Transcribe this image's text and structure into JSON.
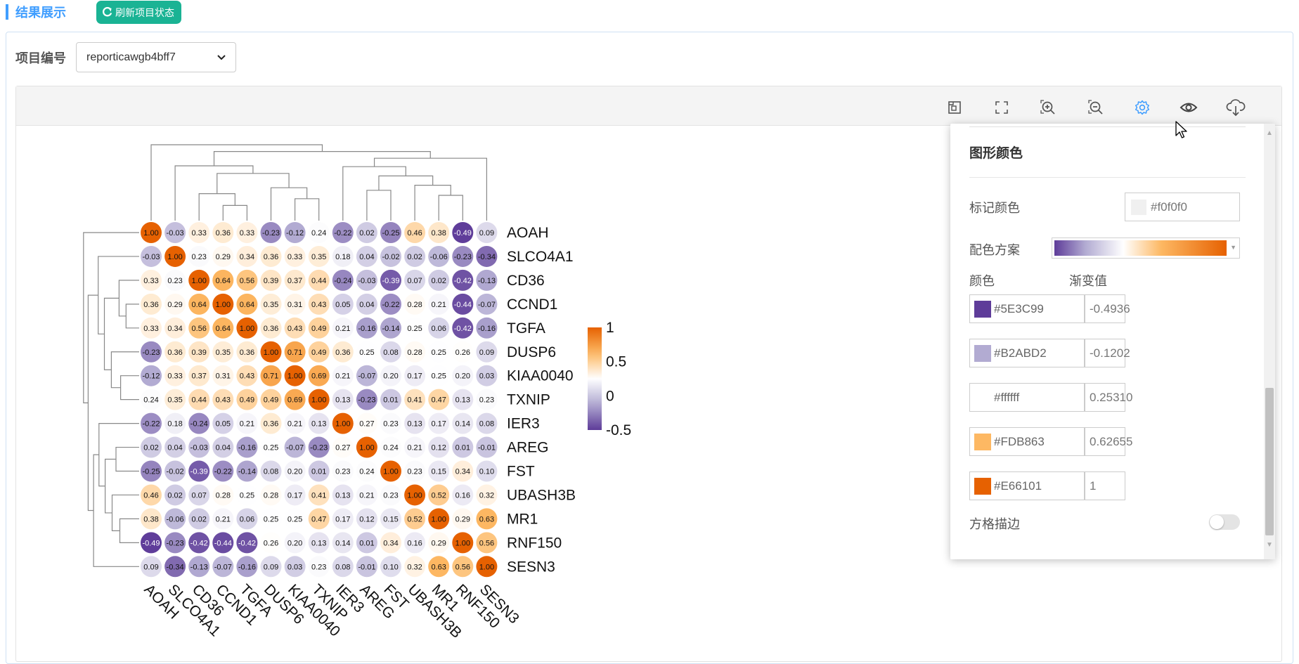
{
  "header": {
    "section_title": "结果展示",
    "refresh_label": "刷新项目状态",
    "refresh_icon": "refresh-icon"
  },
  "project": {
    "label": "项目编号",
    "selected": "reporticawgb4bff7"
  },
  "toolbar": {
    "icons": [
      "restore-icon",
      "fullscreen-icon",
      "zoom-in-icon",
      "zoom-out-icon",
      "settings-icon",
      "preview-icon",
      "download-icon"
    ],
    "active_icon": "settings-icon",
    "active_color": "#409eff"
  },
  "panel": {
    "title": "图形颜色",
    "marker_color_label": "标记颜色",
    "marker_color_value": "#f0f0f0",
    "scheme_label": "配色方案",
    "color_col_label": "颜色",
    "gradient_col_label": "渐变值",
    "stops": [
      {
        "color": "#5E3C99",
        "value": "-0.4936"
      },
      {
        "color": "#B2ABD2",
        "value": "-0.1202"
      },
      {
        "color": "#ffffff",
        "value": "0.25310"
      },
      {
        "color": "#FDB863",
        "value": "0.62655"
      },
      {
        "color": "#E66101",
        "value": "1"
      }
    ],
    "border_label": "方格描边",
    "border_enabled": false
  },
  "chart_data": {
    "type": "heatmap",
    "genes": [
      "AOAH",
      "SLCO4A1",
      "CD36",
      "CCND1",
      "TGFA",
      "DUSP6",
      "KIAA0040",
      "TXNIP",
      "IER3",
      "AREG",
      "FST",
      "UBASH3B",
      "MR1",
      "RNF150",
      "SESN3"
    ],
    "values": [
      [
        1.0,
        -0.03,
        0.33,
        0.36,
        0.33,
        -0.23,
        -0.12,
        0.24,
        -0.22,
        0.02,
        -0.25,
        0.46,
        0.38,
        -0.49,
        0.09
      ],
      [
        -0.03,
        1.0,
        0.23,
        0.29,
        0.34,
        0.36,
        0.33,
        0.35,
        0.18,
        0.04,
        -0.02,
        0.02,
        -0.06,
        -0.23,
        -0.34
      ],
      [
        0.33,
        0.23,
        1.0,
        0.64,
        0.56,
        0.39,
        0.37,
        0.44,
        -0.24,
        -0.03,
        -0.39,
        0.07,
        0.02,
        -0.42,
        -0.13
      ],
      [
        0.36,
        0.29,
        0.64,
        1.0,
        0.64,
        0.35,
        0.31,
        0.43,
        0.05,
        0.04,
        -0.22,
        0.28,
        0.21,
        -0.44,
        -0.07
      ],
      [
        0.33,
        0.34,
        0.56,
        0.64,
        1.0,
        0.36,
        0.43,
        0.49,
        0.21,
        -0.16,
        -0.14,
        0.25,
        0.06,
        -0.42,
        -0.16
      ],
      [
        -0.23,
        0.36,
        0.39,
        0.35,
        0.36,
        1.0,
        0.71,
        0.49,
        0.36,
        0.25,
        0.08,
        0.28,
        0.25,
        0.26,
        0.09
      ],
      [
        -0.12,
        0.33,
        0.37,
        0.31,
        0.43,
        0.71,
        1.0,
        0.69,
        0.21,
        -0.07,
        0.2,
        0.17,
        0.25,
        0.2,
        0.03
      ],
      [
        0.24,
        0.35,
        0.44,
        0.43,
        0.49,
        0.49,
        0.69,
        1.0,
        0.13,
        -0.23,
        0.01,
        0.41,
        0.47,
        0.13,
        0.23
      ],
      [
        -0.22,
        0.18,
        -0.24,
        0.05,
        0.21,
        0.36,
        0.21,
        0.13,
        1.0,
        0.27,
        0.23,
        0.13,
        0.17,
        0.14,
        0.08
      ],
      [
        0.02,
        0.04,
        -0.03,
        0.04,
        -0.16,
        0.25,
        -0.07,
        -0.23,
        0.27,
        1.0,
        0.24,
        0.21,
        0.12,
        0.01,
        -0.01
      ],
      [
        -0.25,
        -0.02,
        -0.39,
        -0.22,
        -0.14,
        0.08,
        0.2,
        0.01,
        0.23,
        0.24,
        1.0,
        0.23,
        0.15,
        0.34,
        0.1
      ],
      [
        0.46,
        0.02,
        0.07,
        0.28,
        0.25,
        0.28,
        0.17,
        0.41,
        0.13,
        0.21,
        0.23,
        1.0,
        0.52,
        0.16,
        0.32
      ],
      [
        0.38,
        -0.06,
        0.02,
        0.21,
        0.06,
        0.25,
        0.25,
        0.47,
        0.17,
        0.12,
        0.15,
        0.52,
        1.0,
        0.29,
        0.63
      ],
      [
        -0.49,
        -0.23,
        -0.42,
        -0.44,
        -0.42,
        0.26,
        0.2,
        0.13,
        0.14,
        0.01,
        0.34,
        0.16,
        0.29,
        1.0,
        0.56
      ],
      [
        0.09,
        -0.34,
        -0.13,
        -0.07,
        -0.16,
        0.09,
        0.03,
        0.23,
        0.08,
        -0.01,
        0.1,
        0.32,
        0.63,
        0.56,
        1.0
      ]
    ],
    "color_scale": {
      "stops": [
        -0.4936,
        -0.1202,
        0.2531,
        0.62655,
        1
      ],
      "colors": [
        "#5E3C99",
        "#B2ABD2",
        "#ffffff",
        "#FDB863",
        "#E66101"
      ]
    },
    "legend_ticks": [
      "1",
      "0.5",
      "0",
      "-0.5"
    ],
    "legend_values": [
      1,
      0.5,
      0,
      -0.5
    ],
    "legend_range": [
      -0.5,
      1
    ]
  }
}
